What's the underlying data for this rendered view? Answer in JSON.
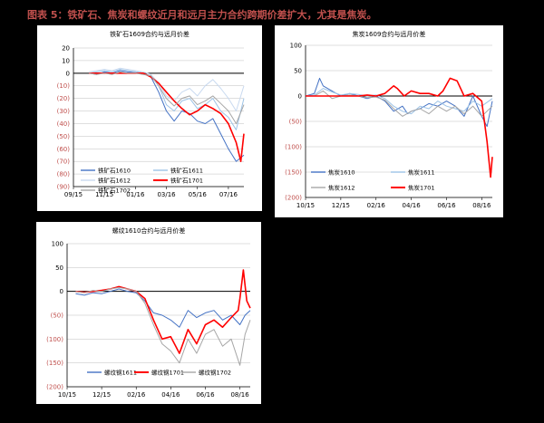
{
  "figure": {
    "title": "图表 5：铁矿石、焦炭和螺纹近月和远月主力合约跨期价差扩大，尤其是焦炭。",
    "title_color": "#c0504d"
  },
  "colors": {
    "neg_tick": "#c0504d",
    "grid": "#bfbfbf",
    "blue": "#4472c4",
    "light_blue": "#9dc3e6",
    "gray": "#a6a6a6",
    "red": "#ff0000"
  },
  "chart_data": [
    {
      "type": "line",
      "title": "铁矿石1609合约与远月价差",
      "x_labels": [
        "09/15",
        "11/15",
        "01/16",
        "03/16",
        "05/16",
        "07/16"
      ],
      "xlim": [
        0,
        11
      ],
      "x_tick_positions": [
        0,
        2,
        4,
        6,
        8,
        10
      ],
      "y_ticks": [
        "20",
        "10",
        "0",
        "(10)",
        "(20)",
        "(30)",
        "(40)",
        "(50)",
        "(60)",
        "(70)",
        "(80)",
        "(90)"
      ],
      "ylim": [
        -90,
        20
      ],
      "legend_position": "bottom-left",
      "series": [
        {
          "name": "铁矿石1610",
          "color": "#4472c4",
          "width": 1,
          "x": [
            1,
            1.5,
            2,
            2.5,
            3,
            3.5,
            4,
            4.5,
            5,
            5.5,
            6,
            6.5,
            7,
            7.5,
            8,
            8.5,
            9,
            9.5,
            10,
            10.5,
            11
          ],
          "y": [
            0,
            -1,
            1,
            0,
            2,
            1,
            1,
            0,
            -3,
            -15,
            -30,
            -38,
            -30,
            -32,
            -38,
            -40,
            -36,
            -48,
            -60,
            -70,
            -65
          ]
        },
        {
          "name": "铁矿石1611",
          "color": "#9dc3e6",
          "width": 1,
          "x": [
            1,
            1.5,
            2,
            2.5,
            3,
            3.5,
            4,
            4.5,
            5,
            5.5,
            6,
            6.5,
            7,
            7.5,
            8,
            8.5,
            9,
            9.5,
            10,
            10.5,
            11
          ],
          "y": [
            0,
            1,
            2,
            1,
            3,
            2,
            1,
            0,
            -2,
            -10,
            -25,
            -30,
            -22,
            -20,
            -28,
            -25,
            -20,
            -30,
            -35,
            -45,
            -20
          ]
        },
        {
          "name": "铁矿石1612",
          "color": "#c9daf0",
          "width": 1,
          "x": [
            1,
            1.5,
            2,
            2.5,
            3,
            3.5,
            4,
            4.5,
            5,
            5.5,
            6,
            6.5,
            7,
            7.5,
            8,
            8.5,
            9,
            9.5,
            10,
            10.5,
            11
          ],
          "y": [
            1,
            2,
            3,
            2,
            4,
            3,
            2,
            1,
            -1,
            -8,
            -18,
            -22,
            -15,
            -12,
            -18,
            -10,
            -5,
            -12,
            -20,
            -30,
            -10
          ]
        },
        {
          "name": "铁矿石1701",
          "color": "#ff0000",
          "width": 1.6,
          "x": [
            1,
            1.5,
            2,
            2.5,
            3,
            3.5,
            4,
            4.5,
            5,
            5.5,
            6,
            6.5,
            7,
            7.5,
            8,
            8.5,
            9,
            9.5,
            10,
            10.5,
            10.8,
            11
          ],
          "y": [
            0,
            0,
            0,
            0,
            0,
            0,
            0,
            0,
            -3,
            -8,
            -15,
            -22,
            -28,
            -33,
            -30,
            -25,
            -28,
            -32,
            -40,
            -55,
            -70,
            -48
          ]
        },
        {
          "name": "铁矿石1702",
          "color": "#a6a6a6",
          "width": 1,
          "x": [
            1,
            1.5,
            2,
            2.5,
            3,
            3.5,
            4,
            4.5,
            5,
            5.5,
            6,
            6.5,
            7,
            7.5,
            8,
            8.5,
            9,
            9.5,
            10,
            10.5,
            11
          ],
          "y": [
            0,
            -1,
            0,
            -1,
            1,
            0,
            0,
            -1,
            -2,
            -10,
            -20,
            -26,
            -20,
            -18,
            -25,
            -22,
            -18,
            -24,
            -30,
            -40,
            -25
          ]
        }
      ]
    },
    {
      "type": "line",
      "title": "焦炭1609合约与远月价差",
      "x_labels": [
        "10/15",
        "12/15",
        "02/16",
        "04/16",
        "06/16",
        "08/16"
      ],
      "xlim": [
        0,
        10.6
      ],
      "x_tick_positions": [
        0,
        2,
        4,
        6,
        8,
        10
      ],
      "y_ticks": [
        "100",
        "50",
        "0",
        "(50)",
        "(100)",
        "(150)",
        "(200)"
      ],
      "ylim": [
        -200,
        100
      ],
      "legend_position": "bottom-left",
      "series": [
        {
          "name": "焦炭1610",
          "color": "#4472c4",
          "width": 1,
          "x": [
            0,
            0.5,
            0.8,
            1,
            1.5,
            2,
            2.5,
            3,
            3.5,
            4,
            4.5,
            5,
            5.5,
            5.8,
            6,
            6.5,
            7,
            7.5,
            8,
            8.5,
            9,
            9.5,
            10,
            10.3,
            10.6
          ],
          "y": [
            0,
            5,
            35,
            20,
            10,
            0,
            5,
            0,
            -5,
            0,
            -10,
            -30,
            -20,
            -35,
            -30,
            -25,
            -15,
            -20,
            -10,
            -20,
            -40,
            0,
            -40,
            -60,
            -10
          ]
        },
        {
          "name": "焦炭1611",
          "color": "#9dc3e6",
          "width": 1,
          "x": [
            0,
            0.5,
            1,
            1.5,
            2,
            2.5,
            3,
            3.5,
            4,
            4.5,
            5,
            5.5,
            6,
            6.5,
            7,
            7.5,
            8,
            8.5,
            9,
            9.5,
            10,
            10.6
          ],
          "y": [
            0,
            2,
            15,
            8,
            2,
            5,
            3,
            0,
            2,
            -5,
            -20,
            -30,
            -35,
            -20,
            -25,
            -10,
            -20,
            -25,
            -30,
            -10,
            -20,
            -5
          ]
        },
        {
          "name": "焦炭1612",
          "color": "#a6a6a6",
          "width": 1,
          "x": [
            0,
            0.5,
            1,
            1.5,
            2,
            2.5,
            3,
            3.5,
            4,
            4.5,
            5,
            5.5,
            6,
            6.5,
            7,
            7.5,
            8,
            8.5,
            9,
            9.5,
            10,
            10.6
          ],
          "y": [
            0,
            0,
            10,
            -5,
            0,
            2,
            0,
            -3,
            -2,
            -8,
            -25,
            -40,
            -30,
            -25,
            -35,
            -20,
            -30,
            -20,
            -35,
            -20,
            -40,
            -20
          ]
        },
        {
          "name": "焦炭1701",
          "color": "#ff0000",
          "width": 1.6,
          "x": [
            0,
            1,
            2,
            3,
            3.5,
            4,
            4.5,
            5,
            5.2,
            5.6,
            6,
            6.5,
            7,
            7.5,
            7.8,
            8.2,
            8.6,
            9,
            9.5,
            10,
            10.3,
            10.5,
            10.6
          ],
          "y": [
            0,
            0,
            0,
            0,
            2,
            0,
            5,
            20,
            15,
            0,
            10,
            5,
            5,
            0,
            10,
            35,
            30,
            0,
            5,
            -10,
            -90,
            -160,
            -120
          ]
        }
      ]
    },
    {
      "type": "line",
      "title": "螺纹1610合约与远月价差",
      "x_labels": [
        "10/15",
        "12/15",
        "02/16",
        "04/16",
        "06/16",
        "08/16"
      ],
      "xlim": [
        0,
        10.6
      ],
      "x_tick_positions": [
        0,
        2,
        4,
        6,
        8,
        10
      ],
      "y_ticks": [
        "100",
        "50",
        "0",
        "(50)",
        "(100)",
        "(150)",
        "(200)"
      ],
      "ylim": [
        -200,
        100
      ],
      "legend_position": "bottom-left",
      "series": [
        {
          "name": "螺纹钢1611",
          "color": "#4472c4",
          "width": 1,
          "x": [
            0.5,
            1,
            1.5,
            2,
            2.5,
            3,
            3.5,
            4,
            4.5,
            5,
            5.5,
            6,
            6.5,
            7,
            7.5,
            8,
            8.5,
            9,
            9.5,
            10,
            10.3,
            10.6
          ],
          "y": [
            -5,
            -8,
            -3,
            -5,
            0,
            5,
            0,
            -3,
            -20,
            -45,
            -50,
            -60,
            -75,
            -40,
            -55,
            -45,
            -40,
            -60,
            -50,
            -70,
            -50,
            -40
          ]
        },
        {
          "name": "螺纹钢1701",
          "color": "#ff0000",
          "width": 1.6,
          "x": [
            0.5,
            1,
            1.5,
            2,
            2.5,
            3,
            3.5,
            4,
            4.5,
            5,
            5.5,
            6,
            6.5,
            7,
            7.5,
            8,
            8.5,
            9,
            9.5,
            9.9,
            10,
            10.2,
            10.4,
            10.6
          ],
          "y": [
            0,
            -2,
            0,
            2,
            5,
            10,
            5,
            0,
            -15,
            -60,
            -100,
            -95,
            -130,
            -80,
            -110,
            -70,
            -60,
            -75,
            -55,
            -40,
            -15,
            45,
            -20,
            -35
          ]
        },
        {
          "name": "螺纹钢1702",
          "color": "#a6a6a6",
          "width": 1,
          "x": [
            0.5,
            1,
            1.5,
            2,
            2.5,
            3,
            3.5,
            4,
            4.5,
            5,
            5.5,
            6,
            6.5,
            7,
            7.5,
            8,
            8.5,
            9,
            9.5,
            10,
            10.3,
            10.6
          ],
          "y": [
            0,
            -3,
            2,
            0,
            5,
            8,
            5,
            0,
            -25,
            -70,
            -110,
            -125,
            -150,
            -100,
            -130,
            -90,
            -80,
            -115,
            -100,
            -155,
            -90,
            -60
          ]
        }
      ]
    }
  ]
}
